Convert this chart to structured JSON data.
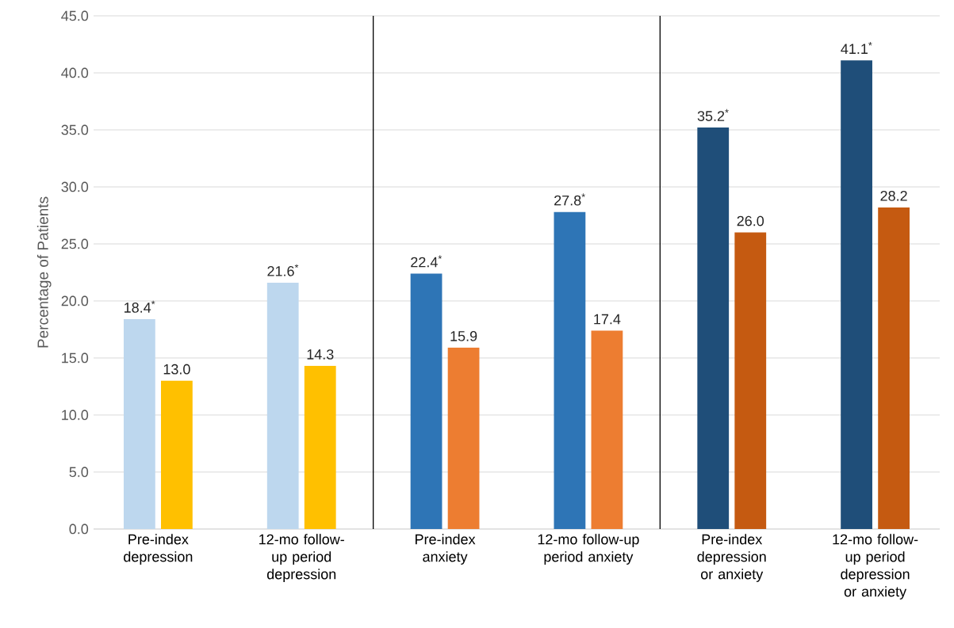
{
  "chart_data": {
    "type": "bar",
    "ylabel": "Percentage of Patients",
    "categories": [
      "Pre-index depression",
      "12-mo follow-up period depression",
      "Pre-index anxiety",
      "12-mo follow-up period anxiety",
      "Pre-index depression or anxiety",
      "12-mo follow-up period depression or anxiety"
    ],
    "series": [
      {
        "values": [
          18.4,
          21.6,
          22.4,
          27.8,
          35.2,
          41.1
        ],
        "colors": [
          "#bdd7ee",
          "#bdd7ee",
          "#2e75b6",
          "#2e75b6",
          "#1f4e79",
          "#1f4e79"
        ],
        "value_labels": [
          "18.4$^{*}$",
          "21.6$^{*}$",
          "22.4$^{*}$",
          "27.8$^{*}$",
          "35.2$^{*}$",
          "41.1$^{*}$"
        ]
      },
      {
        "values": [
          13.0,
          14.3,
          15.9,
          17.4,
          26.0,
          28.2
        ],
        "colors": [
          "#ffc000",
          "#ffc000",
          "#ed7d31",
          "#ed7d31",
          "#c55a11",
          "#c55a11"
        ],
        "value_labels": [
          "13.0",
          "14.3",
          "15.9",
          "17.4",
          "26.0",
          "28.2"
        ]
      }
    ],
    "ylim": [
      0,
      45
    ],
    "yticks": [
      {
        "value": 0,
        "label": "0.0"
      },
      {
        "value": 5,
        "label": "5.0"
      },
      {
        "value": 10,
        "label": "10.0"
      },
      {
        "value": 15,
        "label": "15.0"
      },
      {
        "value": 20,
        "label": "20.0"
      },
      {
        "value": 25,
        "label": "25.0"
      },
      {
        "value": 30,
        "label": "30.0"
      },
      {
        "value": 35,
        "label": "35.0"
      },
      {
        "value": 40,
        "label": "40.0"
      },
      {
        "value": 45,
        "label": "45.0"
      }
    ],
    "grid": "y"
  }
}
